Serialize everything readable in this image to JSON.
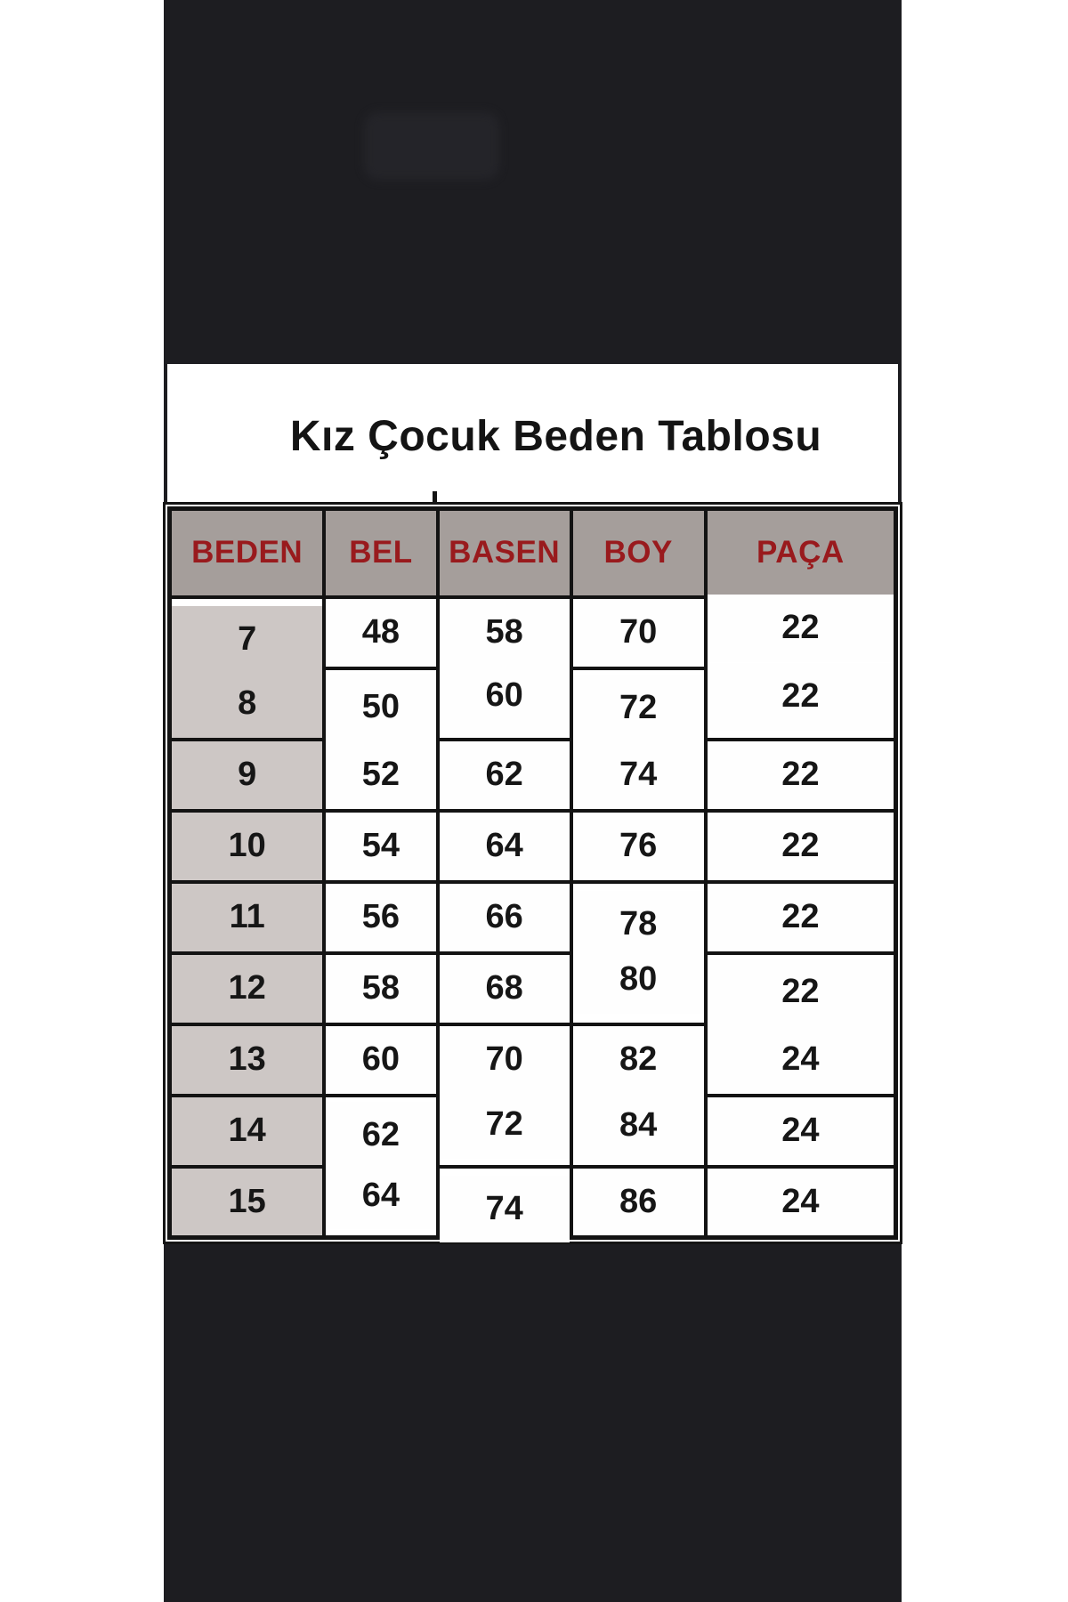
{
  "chart_data": {
    "type": "table",
    "title": "Kız Çocuk Beden Tablosu",
    "columns": [
      "BEDEN",
      "BEL",
      "BASEN",
      "BOY",
      "PAÇA"
    ],
    "rows": [
      [
        "7",
        "48",
        "58",
        "70",
        "22"
      ],
      [
        "8",
        "50",
        "60",
        "72",
        "22"
      ],
      [
        "9",
        "52",
        "62",
        "74",
        "22"
      ],
      [
        "10",
        "54",
        "64",
        "76",
        "22"
      ],
      [
        "11",
        "56",
        "66",
        "78",
        "22"
      ],
      [
        "12",
        "58",
        "68",
        "80",
        "22"
      ],
      [
        "13",
        "60",
        "70",
        "82",
        "24"
      ],
      [
        "14",
        "62",
        "72",
        "84",
        "24"
      ],
      [
        "15",
        "64",
        "74",
        "86",
        "24"
      ]
    ],
    "layout_hints": {
      "header_row_shaded": true,
      "first_column_shaded": true,
      "grid": "heavy black borders"
    }
  },
  "colors": {
    "panel": "#1d1d21",
    "card": "#ffffff",
    "header_bg": "#a59e9b",
    "header_text": "#991a1d",
    "first_col_bg": "#cdc7c5",
    "border": "#131313",
    "cell_text": "#161616",
    "page_bg": "#ffffff"
  }
}
